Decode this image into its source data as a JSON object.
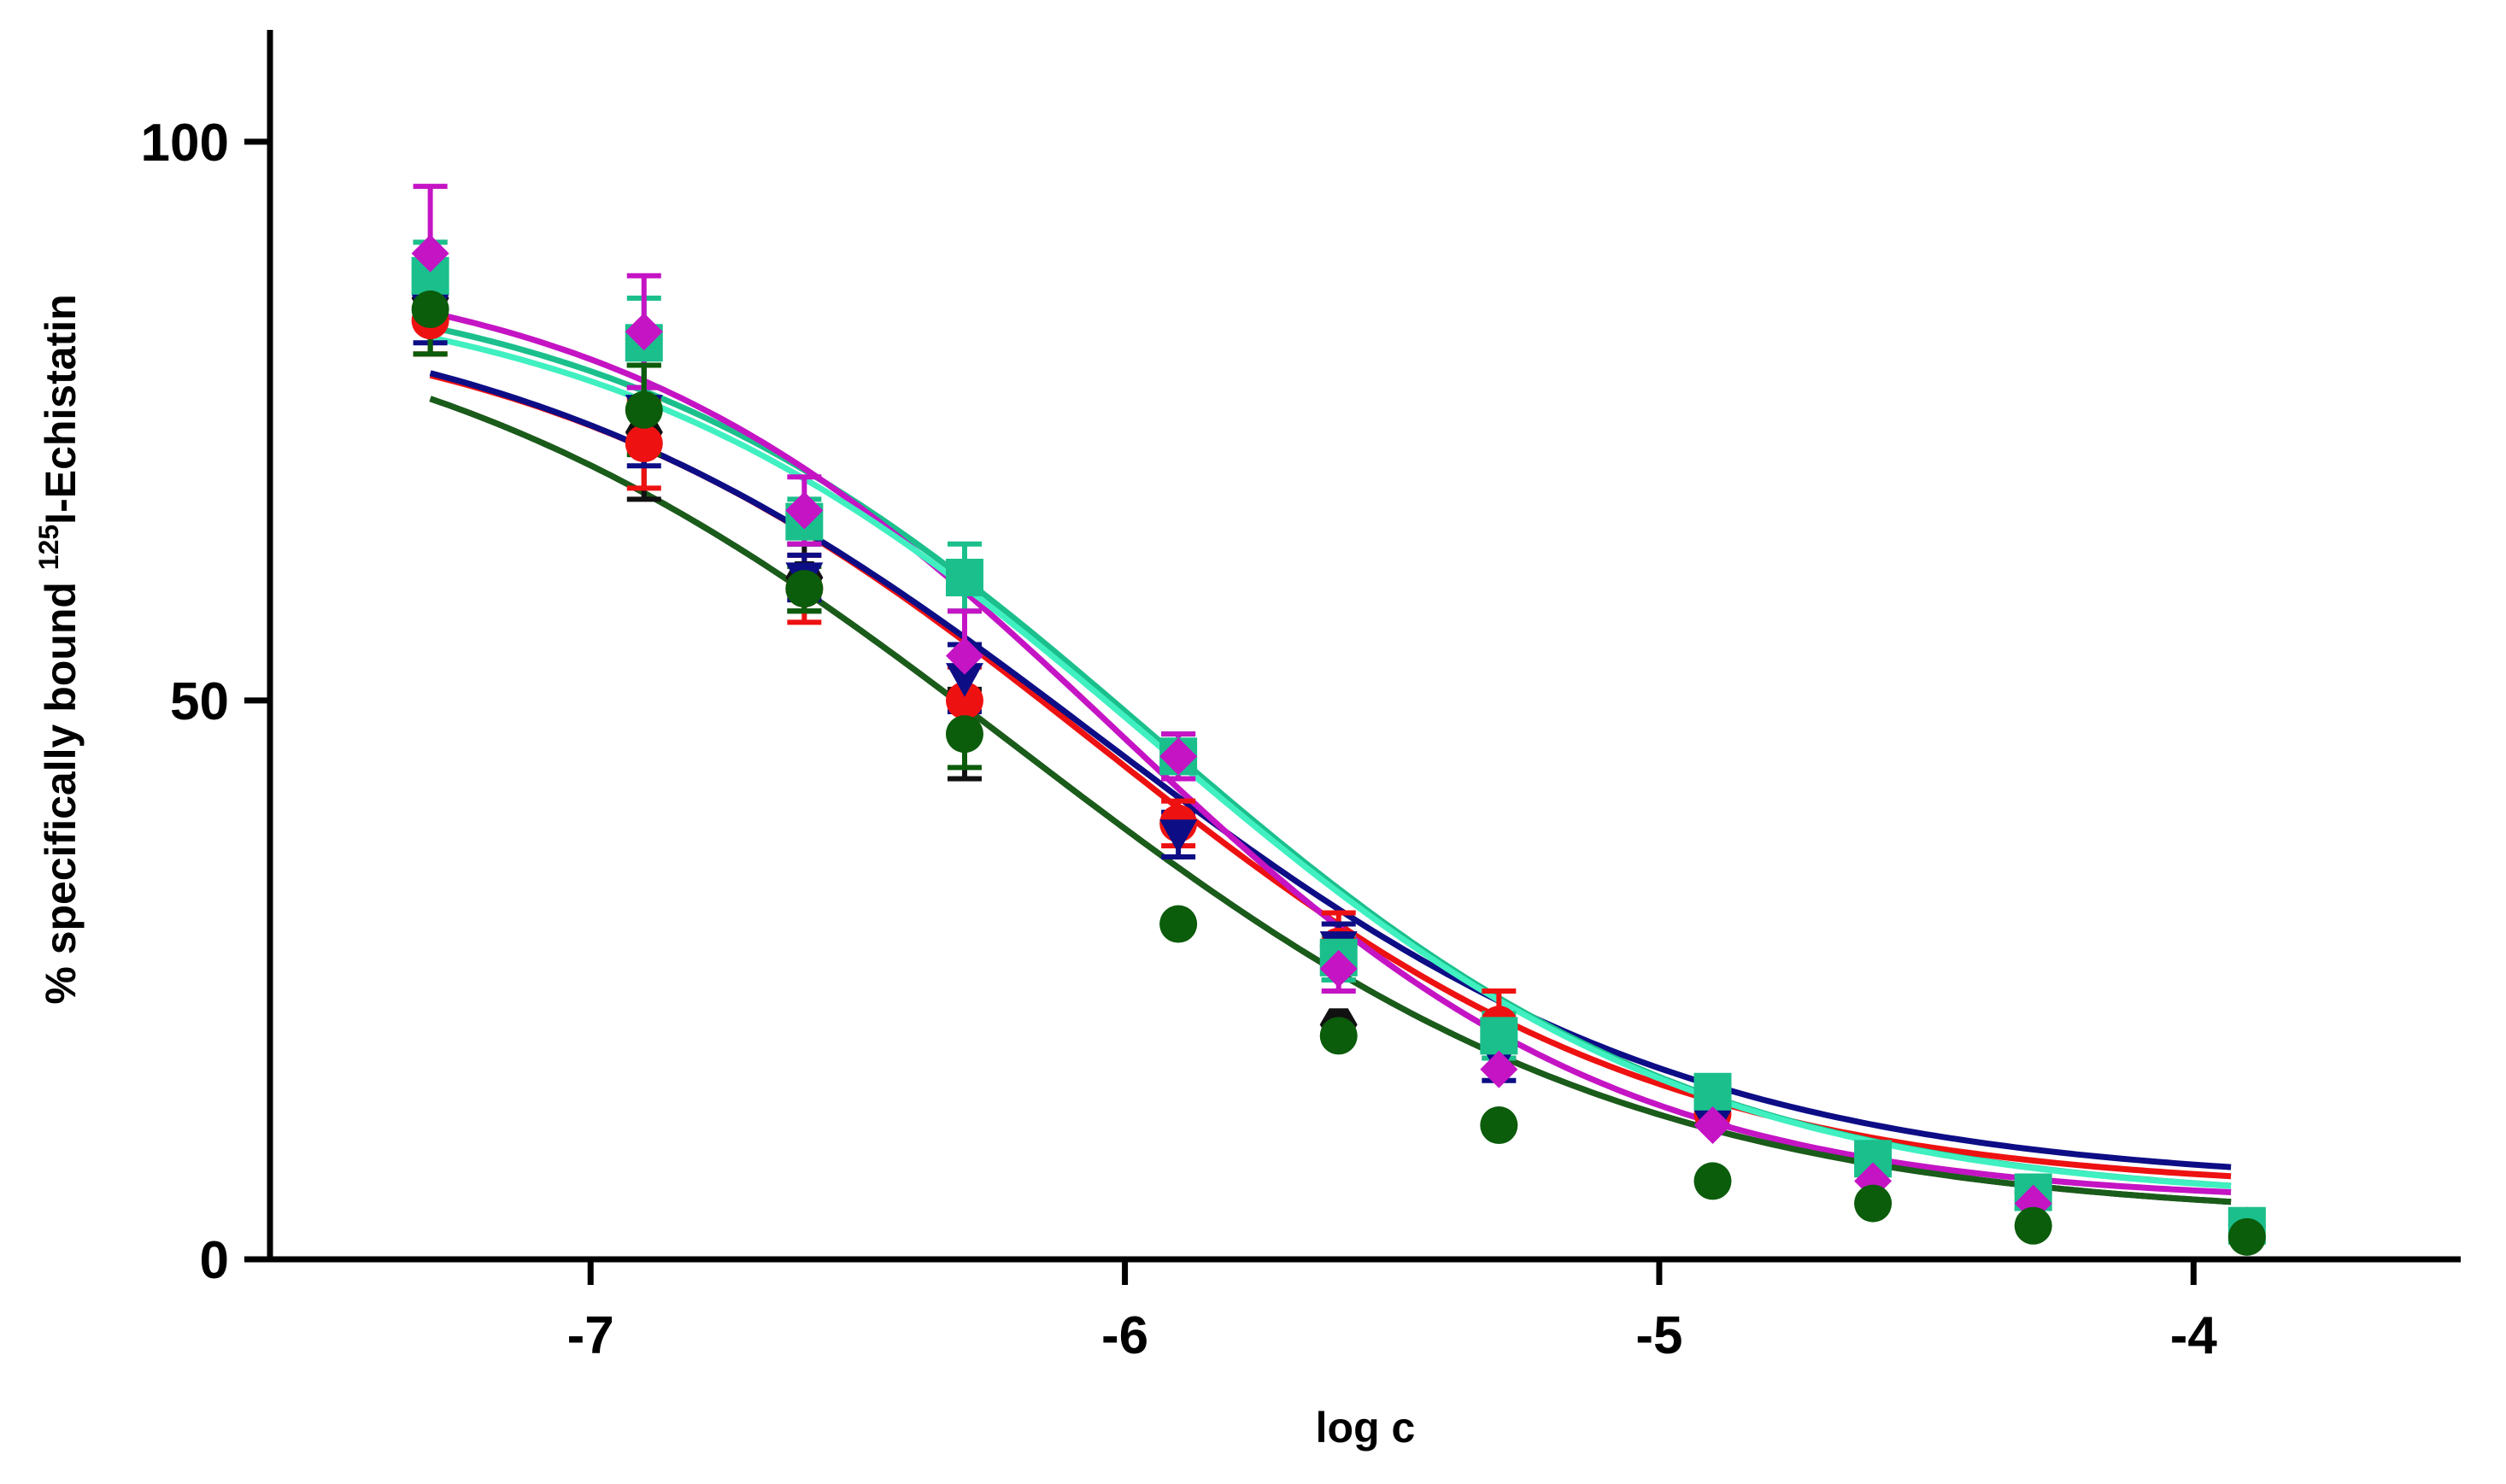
{
  "chart_data": {
    "type": "scatter",
    "title": "",
    "xlabel": "log c",
    "ylabel_prefix": "% specifically bound ",
    "ylabel_superscript": "125",
    "ylabel_suffix": "I-Echistatin",
    "xlim": [
      -7.6,
      -3.5
    ],
    "ylim": [
      0,
      110
    ],
    "x_ticks": [
      -7,
      -6,
      -5,
      -4
    ],
    "x_tick_labels": [
      "-7",
      "-6",
      "-5",
      "-4"
    ],
    "y_ticks": [
      0,
      50,
      100
    ],
    "y_tick_labels": [
      "0",
      "50",
      "100"
    ],
    "grid": false,
    "legend": "none",
    "series": [
      {
        "name": "black-hexagon",
        "color": "#111111",
        "marker": "hexagon",
        "x": [
          -7.3,
          -6.9,
          -6.6,
          -6.3,
          -5.9,
          -5.6,
          -5.3,
          -4.9,
          -4.6,
          -4.3,
          -3.9
        ],
        "y": [
          86,
          74,
          61,
          47,
          30,
          21,
          12,
          7,
          5,
          3,
          2
        ],
        "err": [
          5,
          6,
          3,
          4,
          1,
          1,
          1,
          1,
          1,
          1,
          1
        ],
        "fit": {
          "top": 88,
          "bottom": 3.5,
          "logEC50": -6.2,
          "hill": 0.75
        }
      },
      {
        "name": "red-circle",
        "color": "#ee1111",
        "marker": "circle",
        "x": [
          -7.3,
          -6.9,
          -6.6,
          -6.3,
          -5.9,
          -5.6,
          -5.3,
          -4.9,
          -4.6,
          -4.3,
          -3.9
        ],
        "y": [
          84,
          73,
          60,
          50,
          39,
          28,
          21,
          13,
          9,
          6,
          3
        ],
        "err": [
          3,
          4,
          3,
          3,
          2,
          3,
          3,
          1,
          1,
          1,
          1
        ],
        "fit": {
          "top": 86,
          "bottom": 6,
          "logEC50": -6.05,
          "hill": 0.82
        }
      },
      {
        "name": "navy-triangle-down",
        "color": "#0d0d86",
        "marker": "triangle-down",
        "x": [
          -7.3,
          -6.9,
          -6.6,
          -6.3,
          -5.9,
          -5.6,
          -5.3,
          -4.9,
          -4.6,
          -4.3,
          -3.9
        ],
        "y": [
          85,
          76,
          61,
          52,
          38,
          28,
          18,
          12,
          8,
          5,
          3
        ],
        "err": [
          3,
          5,
          2,
          3,
          2,
          2,
          2,
          1,
          1,
          1,
          1
        ],
        "fit": {
          "top": 87,
          "bottom": 6.5,
          "logEC50": -6.05,
          "hill": 0.78
        }
      },
      {
        "name": "teal-square",
        "color": "#1bbf8c",
        "marker": "square",
        "x": [
          -7.3,
          -6.9,
          -6.6,
          -6.3,
          -5.9,
          -5.6,
          -5.3,
          -4.9,
          -4.6,
          -4.3,
          -3.9
        ],
        "y": [
          88,
          82,
          66,
          61,
          45,
          27,
          20,
          15,
          9,
          6,
          3
        ],
        "err": [
          3,
          4,
          2,
          3,
          2,
          2,
          2,
          1,
          1,
          1,
          1
        ],
        "fit": {
          "top": 89,
          "bottom": 5,
          "logEC50": -5.95,
          "hill": 0.85
        }
      },
      {
        "name": "magenta-diamond",
        "color": "#c414c4",
        "marker": "diamond",
        "x": [
          -7.3,
          -6.9,
          -6.6,
          -6.3,
          -5.9,
          -5.6,
          -5.3,
          -4.9,
          -4.6,
          -4.3,
          -3.9
        ],
        "y": [
          90,
          83,
          67,
          54,
          45,
          26,
          17,
          12,
          7,
          5,
          2
        ],
        "err": [
          6,
          5,
          3,
          4,
          2,
          2,
          1,
          1,
          1,
          1,
          1
        ],
        "fit": {
          "top": 90,
          "bottom": 5,
          "logEC50": -6.02,
          "hill": 0.92
        }
      },
      {
        "name": "green-circle",
        "color": "#0b5c0b",
        "marker": "circle",
        "x": [
          -7.3,
          -6.9,
          -6.6,
          -6.3,
          -5.9,
          -5.6,
          -5.3,
          -4.9,
          -4.6,
          -4.3,
          -3.9
        ],
        "y": [
          85,
          76,
          60,
          47,
          30,
          20,
          12,
          7,
          5,
          3,
          2
        ],
        "err": [
          4,
          4,
          2,
          3,
          1,
          1,
          1,
          1,
          1,
          1,
          1
        ],
        "fit": {
          "top": 88,
          "bottom": 3.5,
          "logEC50": -6.2,
          "hill": 0.75
        },
        "curve_color": "#1a5c1a"
      },
      {
        "name": "aquamarine-fit",
        "color": "#40f0c0",
        "marker": "none",
        "x": [],
        "y": [],
        "err": [],
        "fit": {
          "top": 88,
          "bottom": 5,
          "logEC50": -5.95,
          "hill": 0.85
        }
      }
    ]
  }
}
